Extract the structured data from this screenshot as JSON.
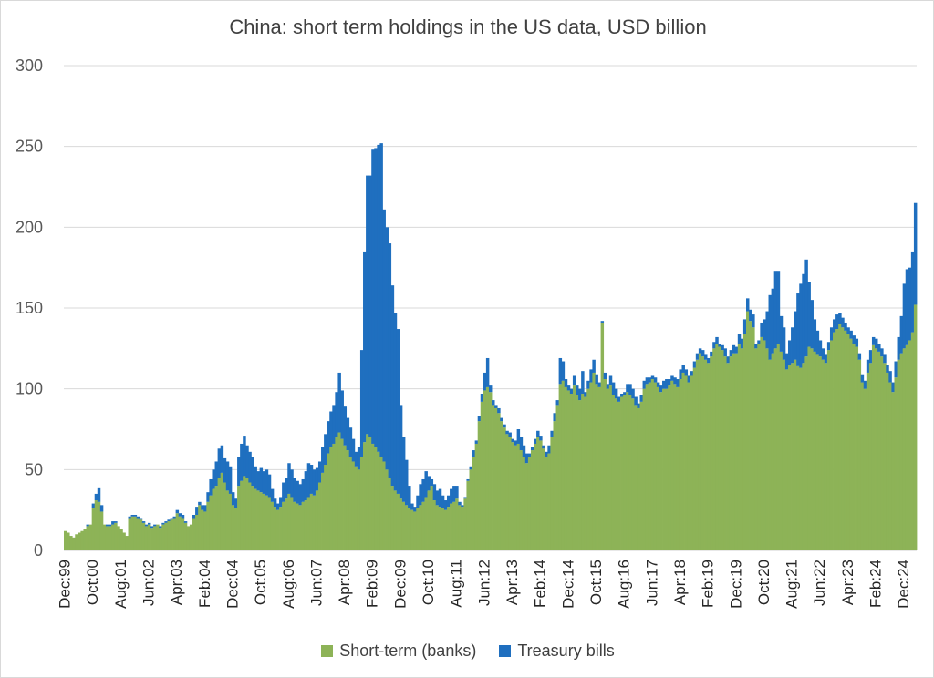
{
  "chart_data": {
    "type": "bar",
    "stacked": true,
    "title": "China: short term holdings in the US data, USD billion",
    "xlabel": "",
    "ylabel": "",
    "ylim": [
      0,
      300
    ],
    "yticks": [
      0,
      50,
      100,
      150,
      200,
      250,
      300
    ],
    "grid": true,
    "legend_position": "bottom",
    "x_tick_labels": [
      "Dec:99",
      "Oct:00",
      "Aug:01",
      "Jun:02",
      "Apr:03",
      "Feb:04",
      "Dec:04",
      "Oct:05",
      "Aug:06",
      "Jun:07",
      "Apr:08",
      "Feb:09",
      "Dec:09",
      "Oct:10",
      "Aug:11",
      "Jun:12",
      "Apr:13",
      "Feb:14",
      "Dec:14",
      "Oct:15",
      "Aug:16",
      "Jun:17",
      "Apr:18",
      "Feb:19",
      "Dec:19",
      "Oct:20",
      "Aug:21",
      "Jun:22",
      "Apr:23",
      "Feb:24",
      "Dec:24"
    ],
    "series_meta": [
      {
        "name": "Short-term (banks)",
        "color": "#8db357"
      },
      {
        "name": "Treasury bills",
        "color": "#1f6fbf"
      }
    ],
    "points": [
      [
        "1999-12",
        12,
        0
      ],
      [
        "2000-01",
        11,
        0
      ],
      [
        "2000-02",
        9,
        0
      ],
      [
        "2000-03",
        8,
        0
      ],
      [
        "2000-04",
        10,
        0
      ],
      [
        "2000-05",
        11,
        0
      ],
      [
        "2000-06",
        12,
        0
      ],
      [
        "2000-07",
        13,
        0
      ],
      [
        "2000-08",
        15,
        1
      ],
      [
        "2000-09",
        16,
        0
      ],
      [
        "2000-10",
        26,
        3
      ],
      [
        "2000-11",
        31,
        4
      ],
      [
        "2000-12",
        30,
        9
      ],
      [
        "2001-01",
        24,
        4
      ],
      [
        "2001-02",
        16,
        0
      ],
      [
        "2001-03",
        15,
        1
      ],
      [
        "2001-04",
        15,
        1
      ],
      [
        "2001-05",
        16,
        2
      ],
      [
        "2001-06",
        17,
        1
      ],
      [
        "2001-07",
        15,
        0
      ],
      [
        "2001-08",
        13,
        0
      ],
      [
        "2001-09",
        11,
        0
      ],
      [
        "2001-10",
        9,
        0
      ],
      [
        "2001-11",
        20,
        1
      ],
      [
        "2001-12",
        21,
        1
      ],
      [
        "2002-01",
        21,
        1
      ],
      [
        "2002-02",
        20,
        1
      ],
      [
        "2002-03",
        19,
        1
      ],
      [
        "2002-04",
        17,
        1
      ],
      [
        "2002-05",
        15,
        1
      ],
      [
        "2002-06",
        16,
        1
      ],
      [
        "2002-07",
        14,
        1
      ],
      [
        "2002-08",
        15,
        1
      ],
      [
        "2002-09",
        16,
        0
      ],
      [
        "2002-10",
        14,
        1
      ],
      [
        "2002-11",
        16,
        1
      ],
      [
        "2002-12",
        17,
        1
      ],
      [
        "2003-01",
        18,
        1
      ],
      [
        "2003-02",
        19,
        1
      ],
      [
        "2003-03",
        20,
        1
      ],
      [
        "2003-04",
        23,
        2
      ],
      [
        "2003-05",
        21,
        2
      ],
      [
        "2003-06",
        20,
        2
      ],
      [
        "2003-07",
        17,
        1
      ],
      [
        "2003-08",
        15,
        0
      ],
      [
        "2003-09",
        16,
        0
      ],
      [
        "2003-10",
        20,
        2
      ],
      [
        "2003-11",
        22,
        5
      ],
      [
        "2003-12",
        28,
        2
      ],
      [
        "2004-01",
        25,
        3
      ],
      [
        "2004-02",
        24,
        4
      ],
      [
        "2004-03",
        30,
        6
      ],
      [
        "2004-04",
        34,
        10
      ],
      [
        "2004-05",
        38,
        12
      ],
      [
        "2004-06",
        40,
        15
      ],
      [
        "2004-07",
        45,
        18
      ],
      [
        "2004-08",
        48,
        17
      ],
      [
        "2004-09",
        42,
        15
      ],
      [
        "2004-10",
        37,
        18
      ],
      [
        "2004-11",
        35,
        17
      ],
      [
        "2004-12",
        28,
        8
      ],
      [
        "2005-01",
        26,
        6
      ],
      [
        "2005-02",
        40,
        18
      ],
      [
        "2005-03",
        43,
        23
      ],
      [
        "2005-04",
        46,
        25
      ],
      [
        "2005-05",
        45,
        20
      ],
      [
        "2005-06",
        42,
        19
      ],
      [
        "2005-07",
        40,
        18
      ],
      [
        "2005-08",
        38,
        14
      ],
      [
        "2005-09",
        37,
        12
      ],
      [
        "2005-10",
        36,
        15
      ],
      [
        "2005-11",
        35,
        14
      ],
      [
        "2005-12",
        34,
        16
      ],
      [
        "2006-01",
        33,
        14
      ],
      [
        "2006-02",
        30,
        8
      ],
      [
        "2006-03",
        27,
        5
      ],
      [
        "2006-04",
        25,
        4
      ],
      [
        "2006-05",
        27,
        6
      ],
      [
        "2006-06",
        30,
        12
      ],
      [
        "2006-07",
        32,
        13
      ],
      [
        "2006-08",
        35,
        19
      ],
      [
        "2006-09",
        33,
        17
      ],
      [
        "2006-10",
        30,
        15
      ],
      [
        "2006-11",
        29,
        14
      ],
      [
        "2006-12",
        28,
        13
      ],
      [
        "2007-01",
        30,
        14
      ],
      [
        "2007-02",
        31,
        18
      ],
      [
        "2007-03",
        33,
        21
      ],
      [
        "2007-04",
        35,
        18
      ],
      [
        "2007-05",
        34,
        16
      ],
      [
        "2007-06",
        37,
        14
      ],
      [
        "2007-07",
        42,
        13
      ],
      [
        "2007-08",
        48,
        16
      ],
      [
        "2007-09",
        53,
        19
      ],
      [
        "2007-10",
        60,
        20
      ],
      [
        "2007-11",
        64,
        22
      ],
      [
        "2007-12",
        66,
        24
      ],
      [
        "2008-01",
        70,
        28
      ],
      [
        "2008-02",
        73,
        37
      ],
      [
        "2008-03",
        69,
        30
      ],
      [
        "2008-04",
        65,
        24
      ],
      [
        "2008-05",
        62,
        20
      ],
      [
        "2008-06",
        58,
        18
      ],
      [
        "2008-07",
        55,
        14
      ],
      [
        "2008-08",
        52,
        9
      ],
      [
        "2008-09",
        50,
        14
      ],
      [
        "2008-10",
        58,
        66
      ],
      [
        "2008-11",
        67,
        118
      ],
      [
        "2008-12",
        72,
        160
      ],
      [
        "2009-01",
        70,
        162
      ],
      [
        "2009-02",
        66,
        182
      ],
      [
        "2009-03",
        64,
        185
      ],
      [
        "2009-04",
        61,
        190
      ],
      [
        "2009-05",
        58,
        194
      ],
      [
        "2009-06",
        55,
        156
      ],
      [
        "2009-07",
        50,
        150
      ],
      [
        "2009-08",
        45,
        145
      ],
      [
        "2009-09",
        40,
        124
      ],
      [
        "2009-10",
        37,
        110
      ],
      [
        "2009-11",
        35,
        102
      ],
      [
        "2009-12",
        32,
        58
      ],
      [
        "2010-01",
        30,
        40
      ],
      [
        "2010-02",
        28,
        28
      ],
      [
        "2010-03",
        26,
        14
      ],
      [
        "2010-04",
        25,
        4
      ],
      [
        "2010-05",
        24,
        3
      ],
      [
        "2010-06",
        26,
        8
      ],
      [
        "2010-07",
        28,
        13
      ],
      [
        "2010-08",
        30,
        14
      ],
      [
        "2010-09",
        33,
        16
      ],
      [
        "2010-10",
        37,
        9
      ],
      [
        "2010-11",
        40,
        4
      ],
      [
        "2010-12",
        31,
        10
      ],
      [
        "2011-01",
        28,
        9
      ],
      [
        "2011-02",
        27,
        11
      ],
      [
        "2011-03",
        26,
        8
      ],
      [
        "2011-04",
        25,
        6
      ],
      [
        "2011-05",
        27,
        7
      ],
      [
        "2011-06",
        29,
        9
      ],
      [
        "2011-07",
        30,
        10
      ],
      [
        "2011-08",
        32,
        8
      ],
      [
        "2011-09",
        28,
        2
      ],
      [
        "2011-10",
        27,
        1
      ],
      [
        "2011-11",
        32,
        1
      ],
      [
        "2011-12",
        43,
        1
      ],
      [
        "2012-01",
        50,
        2
      ],
      [
        "2012-02",
        58,
        4
      ],
      [
        "2012-03",
        66,
        2
      ],
      [
        "2012-04",
        80,
        3
      ],
      [
        "2012-05",
        92,
        5
      ],
      [
        "2012-06",
        99,
        11
      ],
      [
        "2012-07",
        101,
        18
      ],
      [
        "2012-08",
        98,
        4
      ],
      [
        "2012-09",
        90,
        3
      ],
      [
        "2012-10",
        88,
        2
      ],
      [
        "2012-11",
        85,
        3
      ],
      [
        "2012-12",
        80,
        2
      ],
      [
        "2013-01",
        76,
        2
      ],
      [
        "2013-02",
        72,
        2
      ],
      [
        "2013-03",
        70,
        3
      ],
      [
        "2013-04",
        67,
        2
      ],
      [
        "2013-05",
        65,
        3
      ],
      [
        "2013-06",
        66,
        9
      ],
      [
        "2013-07",
        62,
        8
      ],
      [
        "2013-08",
        58,
        7
      ],
      [
        "2013-09",
        54,
        6
      ],
      [
        "2013-10",
        58,
        2
      ],
      [
        "2013-11",
        62,
        2
      ],
      [
        "2013-12",
        66,
        3
      ],
      [
        "2014-01",
        70,
        4
      ],
      [
        "2014-02",
        68,
        3
      ],
      [
        "2014-03",
        63,
        2
      ],
      [
        "2014-04",
        58,
        3
      ],
      [
        "2014-05",
        60,
        5
      ],
      [
        "2014-06",
        70,
        4
      ],
      [
        "2014-07",
        80,
        5
      ],
      [
        "2014-08",
        90,
        3
      ],
      [
        "2014-09",
        103,
        16
      ],
      [
        "2014-10",
        105,
        12
      ],
      [
        "2014-11",
        101,
        5
      ],
      [
        "2014-12",
        99,
        3
      ],
      [
        "2015-01",
        97,
        3
      ],
      [
        "2015-02",
        102,
        6
      ],
      [
        "2015-03",
        96,
        6
      ],
      [
        "2015-04",
        93,
        7
      ],
      [
        "2015-05",
        97,
        14
      ],
      [
        "2015-06",
        95,
        3
      ],
      [
        "2015-07",
        100,
        5
      ],
      [
        "2015-08",
        104,
        8
      ],
      [
        "2015-09",
        110,
        8
      ],
      [
        "2015-10",
        103,
        6
      ],
      [
        "2015-11",
        101,
        3
      ],
      [
        "2015-12",
        141,
        1
      ],
      [
        "2016-01",
        106,
        4
      ],
      [
        "2016-02",
        100,
        3
      ],
      [
        "2016-03",
        102,
        6
      ],
      [
        "2016-04",
        96,
        8
      ],
      [
        "2016-05",
        94,
        6
      ],
      [
        "2016-06",
        92,
        3
      ],
      [
        "2016-07",
        95,
        2
      ],
      [
        "2016-08",
        96,
        2
      ],
      [
        "2016-09",
        98,
        5
      ],
      [
        "2016-10",
        96,
        7
      ],
      [
        "2016-11",
        94,
        6
      ],
      [
        "2016-12",
        90,
        5
      ],
      [
        "2017-01",
        88,
        3
      ],
      [
        "2017-02",
        92,
        4
      ],
      [
        "2017-03",
        100,
        5
      ],
      [
        "2017-04",
        103,
        4
      ],
      [
        "2017-05",
        104,
        3
      ],
      [
        "2017-06",
        106,
        2
      ],
      [
        "2017-07",
        104,
        3
      ],
      [
        "2017-08",
        101,
        3
      ],
      [
        "2017-09",
        98,
        4
      ],
      [
        "2017-10",
        100,
        5
      ],
      [
        "2017-11",
        100,
        6
      ],
      [
        "2017-12",
        102,
        4
      ],
      [
        "2018-01",
        105,
        3
      ],
      [
        "2018-02",
        103,
        4
      ],
      [
        "2018-03",
        101,
        5
      ],
      [
        "2018-04",
        106,
        6
      ],
      [
        "2018-05",
        110,
        5
      ],
      [
        "2018-06",
        108,
        4
      ],
      [
        "2018-07",
        104,
        4
      ],
      [
        "2018-08",
        108,
        3
      ],
      [
        "2018-09",
        113,
        4
      ],
      [
        "2018-10",
        118,
        4
      ],
      [
        "2018-11",
        122,
        3
      ],
      [
        "2018-12",
        120,
        4
      ],
      [
        "2019-01",
        118,
        3
      ],
      [
        "2019-02",
        116,
        3
      ],
      [
        "2019-03",
        120,
        3
      ],
      [
        "2019-04",
        125,
        4
      ],
      [
        "2019-05",
        128,
        4
      ],
      [
        "2019-06",
        126,
        2
      ],
      [
        "2019-07",
        124,
        3
      ],
      [
        "2019-08",
        120,
        5
      ],
      [
        "2019-09",
        116,
        4
      ],
      [
        "2019-10",
        120,
        4
      ],
      [
        "2019-11",
        122,
        5
      ],
      [
        "2019-12",
        122,
        4
      ],
      [
        "2020-01",
        128,
        6
      ],
      [
        "2020-02",
        125,
        6
      ],
      [
        "2020-03",
        134,
        9
      ],
      [
        "2020-04",
        148,
        8
      ],
      [
        "2020-05",
        142,
        7
      ],
      [
        "2020-06",
        138,
        8
      ],
      [
        "2020-07",
        125,
        3
      ],
      [
        "2020-08",
        128,
        2
      ],
      [
        "2020-09",
        132,
        9
      ],
      [
        "2020-10",
        130,
        13
      ],
      [
        "2020-11",
        125,
        23
      ],
      [
        "2020-12",
        118,
        40
      ],
      [
        "2021-01",
        122,
        40
      ],
      [
        "2021-02",
        125,
        48
      ],
      [
        "2021-03",
        128,
        45
      ],
      [
        "2021-04",
        123,
        22
      ],
      [
        "2021-05",
        118,
        20
      ],
      [
        "2021-06",
        112,
        10
      ],
      [
        "2021-07",
        115,
        15
      ],
      [
        "2021-08",
        116,
        22
      ],
      [
        "2021-09",
        118,
        30
      ],
      [
        "2021-10",
        114,
        45
      ],
      [
        "2021-11",
        113,
        52
      ],
      [
        "2021-12",
        116,
        55
      ],
      [
        "2022-01",
        120,
        60
      ],
      [
        "2022-02",
        126,
        40
      ],
      [
        "2022-03",
        125,
        30
      ],
      [
        "2022-04",
        123,
        20
      ],
      [
        "2022-05",
        121,
        15
      ],
      [
        "2022-06",
        120,
        10
      ],
      [
        "2022-07",
        118,
        7
      ],
      [
        "2022-08",
        116,
        5
      ],
      [
        "2022-09",
        124,
        5
      ],
      [
        "2022-10",
        130,
        8
      ],
      [
        "2022-11",
        135,
        8
      ],
      [
        "2022-12",
        137,
        9
      ],
      [
        "2023-01",
        140,
        7
      ],
      [
        "2023-02",
        138,
        6
      ],
      [
        "2023-03",
        136,
        5
      ],
      [
        "2023-04",
        134,
        4
      ],
      [
        "2023-05",
        131,
        5
      ],
      [
        "2023-06",
        128,
        5
      ],
      [
        "2023-07",
        126,
        5
      ],
      [
        "2023-08",
        118,
        4
      ],
      [
        "2023-09",
        104,
        5
      ],
      [
        "2023-10",
        100,
        5
      ],
      [
        "2023-11",
        110,
        8
      ],
      [
        "2023-12",
        116,
        8
      ],
      [
        "2024-01",
        127,
        5
      ],
      [
        "2024-02",
        125,
        6
      ],
      [
        "2024-03",
        123,
        5
      ],
      [
        "2024-04",
        120,
        5
      ],
      [
        "2024-05",
        116,
        5
      ],
      [
        "2024-06",
        110,
        5
      ],
      [
        "2024-07",
        104,
        7
      ],
      [
        "2024-08",
        98,
        6
      ],
      [
        "2024-09",
        107,
        10
      ],
      [
        "2024-10",
        118,
        14
      ],
      [
        "2024-11",
        122,
        23
      ],
      [
        "2024-12",
        125,
        40
      ],
      [
        "2025-01",
        127,
        47
      ],
      [
        "2025-02",
        130,
        45
      ],
      [
        "2025-03",
        135,
        50
      ],
      [
        "2025-04",
        152,
        63
      ]
    ]
  }
}
